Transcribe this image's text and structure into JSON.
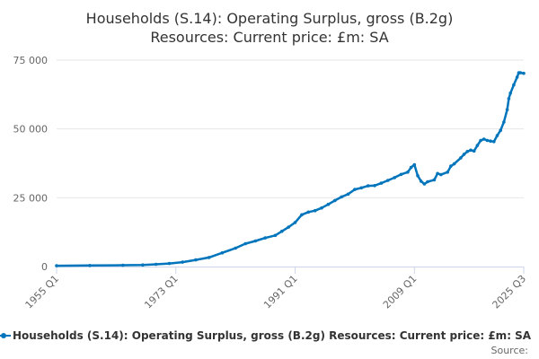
{
  "chart_data": {
    "type": "line",
    "title_lines": [
      "Households (S.14): Operating Surplus, gross (B.2g)",
      "Resources: Current price: £m: SA"
    ],
    "y_ticks": [
      {
        "value": 0,
        "label": "0"
      },
      {
        "value": 25000,
        "label": "25 000"
      },
      {
        "value": 50000,
        "label": "50 000"
      },
      {
        "value": 75000,
        "label": "75 000"
      }
    ],
    "ylim": [
      0,
      75000
    ],
    "x_ticks": [
      {
        "value": 1955.0,
        "label": "1955 Q1"
      },
      {
        "value": 1973.0,
        "label": "1973 Q1"
      },
      {
        "value": 1991.0,
        "label": "1991 Q1"
      },
      {
        "value": 2009.0,
        "label": "2009 Q1"
      },
      {
        "value": 2025.5,
        "label": "2025 Q3"
      }
    ],
    "xlim": [
      1955.0,
      2025.5
    ],
    "grid": true,
    "series": [
      {
        "name": "Households (S.14): Operating Surplus, gross (B.2g) Resources: Current price: £m: SA",
        "color": "#0075bc",
        "points": [
          [
            1955.0,
            300
          ],
          [
            1960.0,
            380
          ],
          [
            1965.0,
            480
          ],
          [
            1968.0,
            600
          ],
          [
            1970.0,
            800
          ],
          [
            1972.0,
            1100
          ],
          [
            1974.0,
            1600
          ],
          [
            1976.0,
            2400
          ],
          [
            1978.0,
            3300
          ],
          [
            1980.0,
            5000
          ],
          [
            1982.0,
            6700
          ],
          [
            1983.5,
            8300
          ],
          [
            1985.0,
            9300
          ],
          [
            1986.5,
            10400
          ],
          [
            1988.0,
            11300
          ],
          [
            1989.0,
            12800
          ],
          [
            1990.0,
            14300
          ],
          [
            1991.0,
            16000
          ],
          [
            1992.0,
            18800
          ],
          [
            1993.0,
            19800
          ],
          [
            1994.0,
            20300
          ],
          [
            1995.0,
            21300
          ],
          [
            1996.0,
            22600
          ],
          [
            1997.0,
            24000
          ],
          [
            1998.0,
            25300
          ],
          [
            1999.0,
            26300
          ],
          [
            2000.0,
            28000
          ],
          [
            2001.0,
            28600
          ],
          [
            2002.0,
            29300
          ],
          [
            2003.0,
            29400
          ],
          [
            2004.0,
            30300
          ],
          [
            2005.0,
            31300
          ],
          [
            2006.0,
            32300
          ],
          [
            2007.0,
            33500
          ],
          [
            2008.0,
            34300
          ],
          [
            2008.5,
            36000
          ],
          [
            2009.0,
            37000
          ],
          [
            2009.5,
            33000
          ],
          [
            2010.0,
            31000
          ],
          [
            2010.5,
            30000
          ],
          [
            2011.0,
            30800
          ],
          [
            2012.0,
            31500
          ],
          [
            2012.5,
            33800
          ],
          [
            2013.0,
            33400
          ],
          [
            2014.0,
            34300
          ],
          [
            2014.5,
            36500
          ],
          [
            2015.0,
            37300
          ],
          [
            2016.0,
            39500
          ],
          [
            2016.5,
            40800
          ],
          [
            2017.0,
            41800
          ],
          [
            2017.5,
            42300
          ],
          [
            2018.0,
            42000
          ],
          [
            2018.5,
            44000
          ],
          [
            2019.0,
            45800
          ],
          [
            2019.5,
            46300
          ],
          [
            2020.0,
            45800
          ],
          [
            2020.5,
            45600
          ],
          [
            2021.0,
            45400
          ],
          [
            2021.5,
            47600
          ],
          [
            2022.0,
            49500
          ],
          [
            2022.5,
            52500
          ],
          [
            2023.0,
            57000
          ],
          [
            2023.25,
            61000
          ],
          [
            2023.5,
            63000
          ],
          [
            2024.0,
            66000
          ],
          [
            2024.5,
            68800
          ],
          [
            2024.75,
            70400
          ],
          [
            2025.0,
            70400
          ],
          [
            2025.5,
            70200
          ]
        ]
      }
    ],
    "legend_position": "bottom",
    "source_label": "Source:"
  }
}
